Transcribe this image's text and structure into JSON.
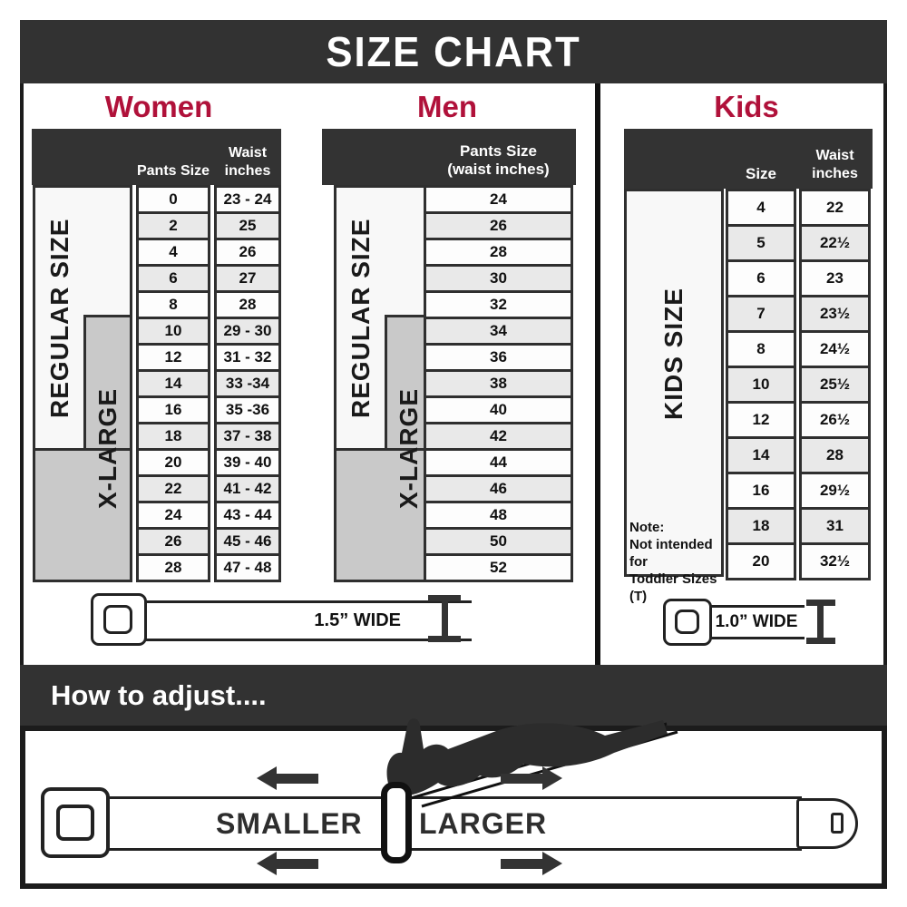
{
  "title": "SIZE CHART",
  "colors": {
    "accent": "#b0113a",
    "dark_bar": "#323232",
    "cell_border": "#2f2f2f",
    "xlarge_gray": "#c9c9c9"
  },
  "sections": {
    "women": {
      "heading": "Women",
      "col1_header": "Pants Size",
      "waist_line1": "Waist",
      "waist_line2": "inches",
      "regular_label": "REGULAR SIZE",
      "xlarge_label": "X-LARGE"
    },
    "men": {
      "heading": "Men",
      "header_line1": "Pants Size",
      "header_line2": "(waist inches)",
      "regular_label": "REGULAR SIZE",
      "xlarge_label": "X-LARGE"
    },
    "kids": {
      "heading": "Kids",
      "size_header": "Size",
      "waist_line1": "Waist",
      "waist_line2": "inches",
      "kids_label": "KIDS SIZE",
      "note_line1": "Note:",
      "note_line2": "Not intended for",
      "note_line3": "Toddler Sizes (T)"
    }
  },
  "belts": {
    "adult_width_label": "1.5” WIDE",
    "kids_width_label": "1.0” WIDE"
  },
  "adjust": {
    "heading": "How to adjust....",
    "smaller": "SMALLER",
    "larger": "LARGER"
  },
  "chart_data": [
    {
      "type": "table",
      "title": "Women",
      "columns": [
        "Pants Size",
        "Waist inches"
      ],
      "rows": [
        [
          "0",
          "23 - 24"
        ],
        [
          "2",
          "25"
        ],
        [
          "4",
          "26"
        ],
        [
          "6",
          "27"
        ],
        [
          "8",
          "28"
        ],
        [
          "10",
          "29 - 30"
        ],
        [
          "12",
          "31 - 32"
        ],
        [
          "14",
          "33 -34"
        ],
        [
          "16",
          "35 -36"
        ],
        [
          "18",
          "37 - 38"
        ],
        [
          "20",
          "39 - 40"
        ],
        [
          "22",
          "41 - 42"
        ],
        [
          "24",
          "43 - 44"
        ],
        [
          "26",
          "45 - 46"
        ],
        [
          "28",
          "47 - 48"
        ]
      ],
      "groups": {
        "regular": [
          "0",
          "2",
          "4",
          "6",
          "8",
          "10",
          "12",
          "14",
          "16",
          "18"
        ],
        "xlarge": [
          "10",
          "12",
          "14",
          "16",
          "18",
          "20",
          "22",
          "24",
          "26",
          "28"
        ]
      }
    },
    {
      "type": "table",
      "title": "Men",
      "columns": [
        "Pants Size (waist inches)"
      ],
      "rows": [
        [
          "24"
        ],
        [
          "26"
        ],
        [
          "28"
        ],
        [
          "30"
        ],
        [
          "32"
        ],
        [
          "34"
        ],
        [
          "36"
        ],
        [
          "38"
        ],
        [
          "40"
        ],
        [
          "42"
        ],
        [
          "44"
        ],
        [
          "46"
        ],
        [
          "48"
        ],
        [
          "50"
        ],
        [
          "52"
        ]
      ],
      "groups": {
        "regular": [
          "24",
          "26",
          "28",
          "30",
          "32",
          "34",
          "36",
          "38",
          "40",
          "42"
        ],
        "xlarge": [
          "34",
          "36",
          "38",
          "40",
          "42",
          "44",
          "46",
          "48",
          "50",
          "52"
        ]
      }
    },
    {
      "type": "table",
      "title": "Kids",
      "columns": [
        "Size",
        "Waist inches"
      ],
      "rows": [
        [
          "4",
          "22"
        ],
        [
          "5",
          "22½"
        ],
        [
          "6",
          "23"
        ],
        [
          "7",
          "23½"
        ],
        [
          "8",
          "24½"
        ],
        [
          "10",
          "25½"
        ],
        [
          "12",
          "26½"
        ],
        [
          "14",
          "28"
        ],
        [
          "16",
          "29½"
        ],
        [
          "18",
          "31"
        ],
        [
          "20",
          "32½"
        ]
      ]
    }
  ]
}
